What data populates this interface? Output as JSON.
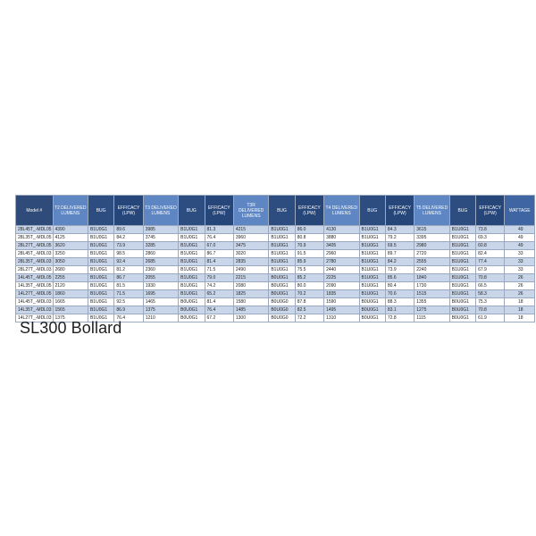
{
  "title": "SL300 Bollard",
  "table": {
    "headers": {
      "model": "Model #",
      "t2_lumens": "T2 DELIVERED LUMENS",
      "t2_bug": "BUG",
      "t2_eff": "EFFICACY (LPW)",
      "t3_lumens": "T3 DELIVERED LUMENS",
      "t3_bug": "BUG",
      "t3_eff": "EFFICACY (LPW)",
      "t3r_lumens": "T3R DELIVERED LUMENS",
      "t3r_bug": "BUG",
      "t3r_eff": "EFFICACY (LPW)",
      "t4_lumens": "T4 DELIVERED LUMENS",
      "t4_bug": "BUG",
      "t4_eff": "EFFICACY (LPW)",
      "t5_lumens": "T5 DELIVERED LUMENS",
      "t5_bug": "BUG",
      "t5_eff": "EFFICACY (LPW)",
      "wattage": "WATTAGE"
    },
    "rows": [
      {
        "model": "28L45T_-MDL05",
        "t2_lumens": "4390",
        "t2_bug": "B1U0G1",
        "t2_eff": "89.6",
        "t3_lumens": "3985",
        "t3_bug": "B1U0G1",
        "t3_eff": "81.3",
        "t3r_lumens": "4215",
        "t3r_bug": "B1U0G1",
        "t3r_eff": "86.0",
        "t4_lumens": "4130",
        "t4_bug": "B1U0G1",
        "t4_eff": "84.3",
        "t5_lumens": "3615",
        "t5_bug": "B1U0G1",
        "t5_eff": "73.8",
        "wattage": "49"
      },
      {
        "model": "28L35T_-MDL05",
        "t2_lumens": "4125",
        "t2_bug": "B1U0G1",
        "t2_eff": "84.2",
        "t3_lumens": "3745",
        "t3_bug": "B1U0G1",
        "t3_eff": "76.4",
        "t3r_lumens": "3960",
        "t3r_bug": "B1U0G1",
        "t3r_eff": "80.8",
        "t4_lumens": "3880",
        "t4_bug": "B1U0G1",
        "t4_eff": "79.2",
        "t5_lumens": "3395",
        "t5_bug": "B1U0G1",
        "t5_eff": "69.3",
        "wattage": "49"
      },
      {
        "model": "28L27T_-MDL05",
        "t2_lumens": "3620",
        "t2_bug": "B1U0G1",
        "t2_eff": "73.9",
        "t3_lumens": "3285",
        "t3_bug": "B1U0G1",
        "t3_eff": "67.0",
        "t3r_lumens": "3475",
        "t3r_bug": "B1U0G1",
        "t3r_eff": "70.9",
        "t4_lumens": "3405",
        "t4_bug": "B1U0G1",
        "t4_eff": "69.5",
        "t5_lumens": "2980",
        "t5_bug": "B1U0G1",
        "t5_eff": "60.8",
        "wattage": "49"
      },
      {
        "model": "28L45T_-MDL03",
        "t2_lumens": "3250",
        "t2_bug": "B1U0G1",
        "t2_eff": "98.5",
        "t3_lumens": "2860",
        "t3_bug": "B1U0G1",
        "t3_eff": "86.7",
        "t3r_lumens": "3020",
        "t3r_bug": "B1U0G1",
        "t3r_eff": "91.5",
        "t4_lumens": "2960",
        "t4_bug": "B1U0G1",
        "t4_eff": "89.7",
        "t5_lumens": "2720",
        "t5_bug": "B1U0G1",
        "t5_eff": "82.4",
        "wattage": "33"
      },
      {
        "model": "28L35T_-MDL03",
        "t2_lumens": "3050",
        "t2_bug": "B1U0G1",
        "t2_eff": "92.4",
        "t3_lumens": "2685",
        "t3_bug": "B1U0G1",
        "t3_eff": "81.4",
        "t3r_lumens": "2835",
        "t3r_bug": "B1U0G1",
        "t3r_eff": "85.9",
        "t4_lumens": "2780",
        "t4_bug": "B1U0G1",
        "t4_eff": "84.2",
        "t5_lumens": "2555",
        "t5_bug": "B1U0G1",
        "t5_eff": "77.4",
        "wattage": "33"
      },
      {
        "model": "28L27T_-MDL03",
        "t2_lumens": "2680",
        "t2_bug": "B1U0G1",
        "t2_eff": "81.2",
        "t3_lumens": "2360",
        "t3_bug": "B1U0G1",
        "t3_eff": "71.5",
        "t3r_lumens": "2490",
        "t3r_bug": "B1U0G1",
        "t3r_eff": "75.5",
        "t4_lumens": "2440",
        "t4_bug": "B1U0G1",
        "t4_eff": "73.9",
        "t5_lumens": "2240",
        "t5_bug": "B1U0G1",
        "t5_eff": "67.9",
        "wattage": "33"
      },
      {
        "model": "14L45T_-MDL05",
        "t2_lumens": "2255",
        "t2_bug": "B1U0G1",
        "t2_eff": "86.7",
        "t3_lumens": "2055",
        "t3_bug": "B1U0G1",
        "t3_eff": "79.0",
        "t3r_lumens": "2215",
        "t3r_bug": "B0U0G1",
        "t3r_eff": "85.2",
        "t4_lumens": "2225",
        "t4_bug": "B1U0G1",
        "t4_eff": "85.6",
        "t5_lumens": "1840",
        "t5_bug": "B1U0G1",
        "t5_eff": "70.8",
        "wattage": "26"
      },
      {
        "model": "14L35T_-MDL05",
        "t2_lumens": "2120",
        "t2_bug": "B1U0G1",
        "t2_eff": "81.5",
        "t3_lumens": "1930",
        "t3_bug": "B1U0G1",
        "t3_eff": "74.2",
        "t3r_lumens": "2080",
        "t3r_bug": "B0U0G1",
        "t3r_eff": "80.0",
        "t4_lumens": "2090",
        "t4_bug": "B1U0G1",
        "t4_eff": "80.4",
        "t5_lumens": "1730",
        "t5_bug": "B1U0G1",
        "t5_eff": "66.5",
        "wattage": "26"
      },
      {
        "model": "14L27T_-MDL05",
        "t2_lumens": "1860",
        "t2_bug": "B1U0G1",
        "t2_eff": "71.5",
        "t3_lumens": "1695",
        "t3_bug": "B1U0G1",
        "t3_eff": "65.2",
        "t3r_lumens": "1825",
        "t3r_bug": "B0U0G1",
        "t3r_eff": "70.2",
        "t4_lumens": "1835",
        "t4_bug": "B1U0G1",
        "t4_eff": "70.6",
        "t5_lumens": "1515",
        "t5_bug": "B1U0G1",
        "t5_eff": "58.3",
        "wattage": "26"
      },
      {
        "model": "14L45T_-MDL03",
        "t2_lumens": "1665",
        "t2_bug": "B1U0G1",
        "t2_eff": "92.5",
        "t3_lumens": "1465",
        "t3_bug": "B0U0G1",
        "t3_eff": "81.4",
        "t3r_lumens": "1580",
        "t3r_bug": "B0U0G0",
        "t3r_eff": "87.8",
        "t4_lumens": "1590",
        "t4_bug": "B0U0G1",
        "t4_eff": "88.3",
        "t5_lumens": "1355",
        "t5_bug": "B0U0G1",
        "t5_eff": "75.3",
        "wattage": "18"
      },
      {
        "model": "14L35T_-MDL03",
        "t2_lumens": "1565",
        "t2_bug": "B1U0G1",
        "t2_eff": "86.9",
        "t3_lumens": "1375",
        "t3_bug": "B0U0G1",
        "t3_eff": "76.4",
        "t3r_lumens": "1485",
        "t3r_bug": "B0U0G0",
        "t3r_eff": "82.5",
        "t4_lumens": "1495",
        "t4_bug": "B0U0G1",
        "t4_eff": "83.1",
        "t5_lumens": "1275",
        "t5_bug": "B0U0G1",
        "t5_eff": "70.8",
        "wattage": "18"
      },
      {
        "model": "14L27T_-MDL03",
        "t2_lumens": "1375",
        "t2_bug": "B1U0G1",
        "t2_eff": "76.4",
        "t3_lumens": "1210",
        "t3_bug": "B0U0G1",
        "t3_eff": "67.2",
        "t3r_lumens": "1300",
        "t3r_bug": "B0U0G0",
        "t3r_eff": "72.2",
        "t4_lumens": "1310",
        "t4_bug": "B0U0G1",
        "t4_eff": "72.8",
        "t5_lumens": "1115",
        "t5_bug": "B0U0G1",
        "t5_eff": "61.9",
        "wattage": "18"
      }
    ]
  }
}
